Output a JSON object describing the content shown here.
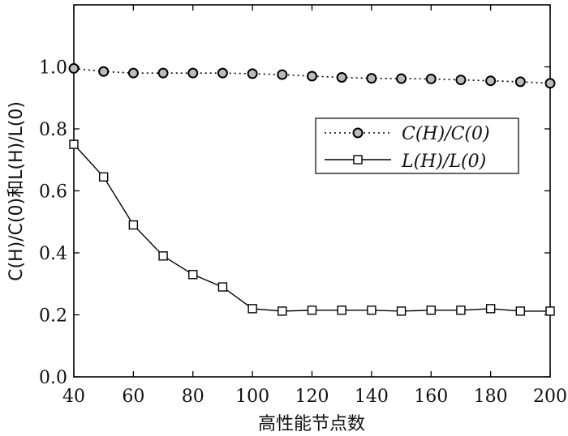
{
  "chart_data": {
    "type": "line",
    "title": "",
    "xlabel": "高性能节点数",
    "ylabel": "C(H)/C(0)和L(H)/L(0)",
    "xlim": [
      40,
      200
    ],
    "ylim": [
      0,
      1.2
    ],
    "xticks": [
      40,
      60,
      80,
      100,
      120,
      140,
      160,
      180,
      200
    ],
    "yticks": [
      0.0,
      0.2,
      0.4,
      0.6,
      0.8,
      1.0
    ],
    "xtick_labels": [
      "40",
      "60",
      "80",
      "100",
      "120",
      "140",
      "160",
      "180",
      "200"
    ],
    "ytick_labels": [
      "0.0",
      "0.2",
      "0.4",
      "0.6",
      "0.8",
      "1.0"
    ],
    "grid": false,
    "legend_position": "right",
    "x": [
      40,
      50,
      60,
      70,
      80,
      90,
      100,
      110,
      120,
      130,
      140,
      150,
      160,
      170,
      180,
      190,
      200
    ],
    "series": [
      {
        "name": "C(H)/C(0)",
        "line_style": "dotted",
        "marker": "circle",
        "values": [
          0.995,
          0.985,
          0.98,
          0.98,
          0.98,
          0.98,
          0.978,
          0.975,
          0.97,
          0.966,
          0.963,
          0.962,
          0.961,
          0.958,
          0.955,
          0.952,
          0.947
        ]
      },
      {
        "name": "L(H)/L(0)",
        "line_style": "solid",
        "marker": "square",
        "values": [
          0.75,
          0.645,
          0.49,
          0.39,
          0.33,
          0.29,
          0.22,
          0.212,
          0.215,
          0.215,
          0.215,
          0.212,
          0.215,
          0.215,
          0.22,
          0.212,
          0.212
        ]
      }
    ]
  }
}
